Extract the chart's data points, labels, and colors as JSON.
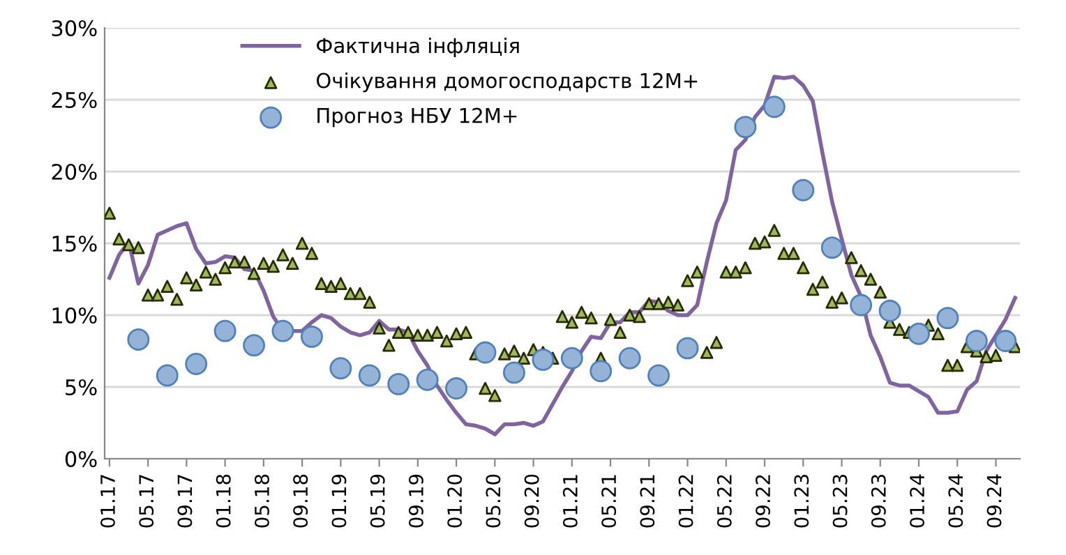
{
  "chart_data": {
    "type": "line",
    "categories": [
      "01.17",
      null,
      null,
      null,
      "05.17",
      null,
      null,
      null,
      "09.17",
      null,
      null,
      null,
      "01.18",
      null,
      null,
      null,
      "05.18",
      null,
      null,
      null,
      "09.18",
      null,
      null,
      null,
      "01.19",
      null,
      null,
      null,
      "05.19",
      null,
      null,
      null,
      "09.19",
      null,
      null,
      null,
      "01.20",
      null,
      null,
      null,
      "05.20",
      null,
      null,
      null,
      "09.20",
      null,
      null,
      null,
      "01.21",
      null,
      null,
      null,
      "05.21",
      null,
      null,
      null,
      "09.21",
      null,
      null,
      null,
      "01.22",
      null,
      null,
      null,
      "05.22",
      null,
      null,
      null,
      "09.22",
      null,
      null,
      null,
      "01.23",
      null,
      null,
      null,
      "05.23",
      null,
      null,
      null,
      "09.23",
      null,
      null,
      null,
      "01.24",
      null,
      null,
      null,
      "05.24",
      null,
      null,
      null,
      "09.24",
      null,
      null
    ],
    "series": [
      {
        "name": "Фактична інфляція",
        "color": "#8064a2",
        "marker": "none",
        "line_style": "solid",
        "values": [
          12.6,
          14.2,
          15.1,
          12.2,
          13.5,
          15.6,
          15.9,
          16.2,
          16.4,
          14.6,
          13.6,
          13.7,
          14.1,
          14.0,
          13.2,
          13.1,
          11.7,
          9.9,
          8.9,
          8.9,
          8.9,
          9.5,
          10.0,
          9.8,
          9.2,
          8.8,
          8.6,
          8.8,
          9.6,
          9.0,
          9.0,
          8.8,
          7.5,
          6.5,
          5.1,
          4.1,
          3.2,
          2.4,
          2.3,
          2.1,
          1.7,
          2.4,
          2.4,
          2.5,
          2.3,
          2.6,
          3.8,
          5.0,
          6.1,
          7.5,
          8.5,
          8.4,
          9.5,
          9.5,
          10.2,
          10.2,
          11.0,
          10.9,
          10.3,
          10.0,
          10.0,
          10.7,
          13.7,
          16.4,
          18.0,
          21.5,
          22.2,
          23.8,
          24.6,
          26.6,
          26.5,
          26.6,
          26.0,
          24.9,
          21.3,
          17.9,
          15.3,
          12.8,
          11.3,
          8.6,
          7.1,
          5.3,
          5.1,
          5.1,
          4.7,
          4.3,
          3.2,
          3.2,
          3.3,
          4.8,
          5.4,
          7.5,
          8.6,
          9.7,
          11.2
        ]
      },
      {
        "name": "Очікування домогосподарств 12М+",
        "type": "scatter",
        "color": "#9bbb59",
        "marker": "triangle",
        "values": [
          17.1,
          15.3,
          14.9,
          14.7,
          11.4,
          11.4,
          12.0,
          11.1,
          12.6,
          12.1,
          13.0,
          12.5,
          13.3,
          13.7,
          13.7,
          12.9,
          13.6,
          13.4,
          14.2,
          13.6,
          15.0,
          14.3,
          12.2,
          12.0,
          12.2,
          11.5,
          11.5,
          10.9,
          9.1,
          7.9,
          8.8,
          8.8,
          8.6,
          8.6,
          8.8,
          8.2,
          8.7,
          8.8,
          7.3,
          4.9,
          4.4,
          7.3,
          7.5,
          7.0,
          7.6,
          7.4,
          7.0,
          9.9,
          9.5,
          10.2,
          9.8,
          7.0,
          9.7,
          8.8,
          10.0,
          9.9,
          10.8,
          10.8,
          10.9,
          10.7,
          12.4,
          13.0,
          7.4,
          8.1,
          13.0,
          13.0,
          13.3,
          15.0,
          15.1,
          15.9,
          14.3,
          14.3,
          13.3,
          11.8,
          12.3,
          10.9,
          11.2,
          14.0,
          13.1,
          12.5,
          11.6,
          9.5,
          9.0,
          8.8,
          null,
          9.3,
          8.7,
          6.5,
          6.5,
          7.8,
          7.5,
          7.1,
          7.2,
          null,
          7.8
        ]
      },
      {
        "name": "Прогноз НБУ 12М+",
        "type": "scatter",
        "color": "#95b3d7",
        "marker": "circle",
        "values": [
          null,
          null,
          null,
          8.3,
          null,
          null,
          5.8,
          null,
          null,
          6.6,
          null,
          null,
          8.9,
          null,
          null,
          7.9,
          null,
          null,
          8.9,
          null,
          null,
          8.5,
          null,
          null,
          6.3,
          null,
          null,
          5.8,
          null,
          null,
          5.2,
          null,
          null,
          5.5,
          null,
          null,
          4.9,
          null,
          null,
          7.4,
          null,
          null,
          6.0,
          null,
          null,
          6.9,
          null,
          null,
          7.0,
          null,
          null,
          6.1,
          null,
          null,
          7.0,
          null,
          null,
          5.8,
          null,
          null,
          7.7,
          null,
          null,
          null,
          null,
          null,
          23.1,
          null,
          null,
          24.5,
          null,
          null,
          18.7,
          null,
          null,
          14.7,
          null,
          null,
          10.7,
          null,
          null,
          10.3,
          null,
          null,
          8.7,
          null,
          null,
          9.8,
          null,
          null,
          8.2,
          null,
          null,
          8.2,
          null
        ]
      }
    ],
    "ylim": [
      0,
      30
    ],
    "yticks": [
      {
        "value": 0,
        "label": "0%"
      },
      {
        "value": 5,
        "label": "5%"
      },
      {
        "value": 10,
        "label": "10%"
      },
      {
        "value": 15,
        "label": "15%"
      },
      {
        "value": 20,
        "label": "20%"
      },
      {
        "value": 25,
        "label": "25%"
      },
      {
        "value": 30,
        "label": "30%"
      }
    ],
    "grid": "y",
    "legend": "top"
  }
}
